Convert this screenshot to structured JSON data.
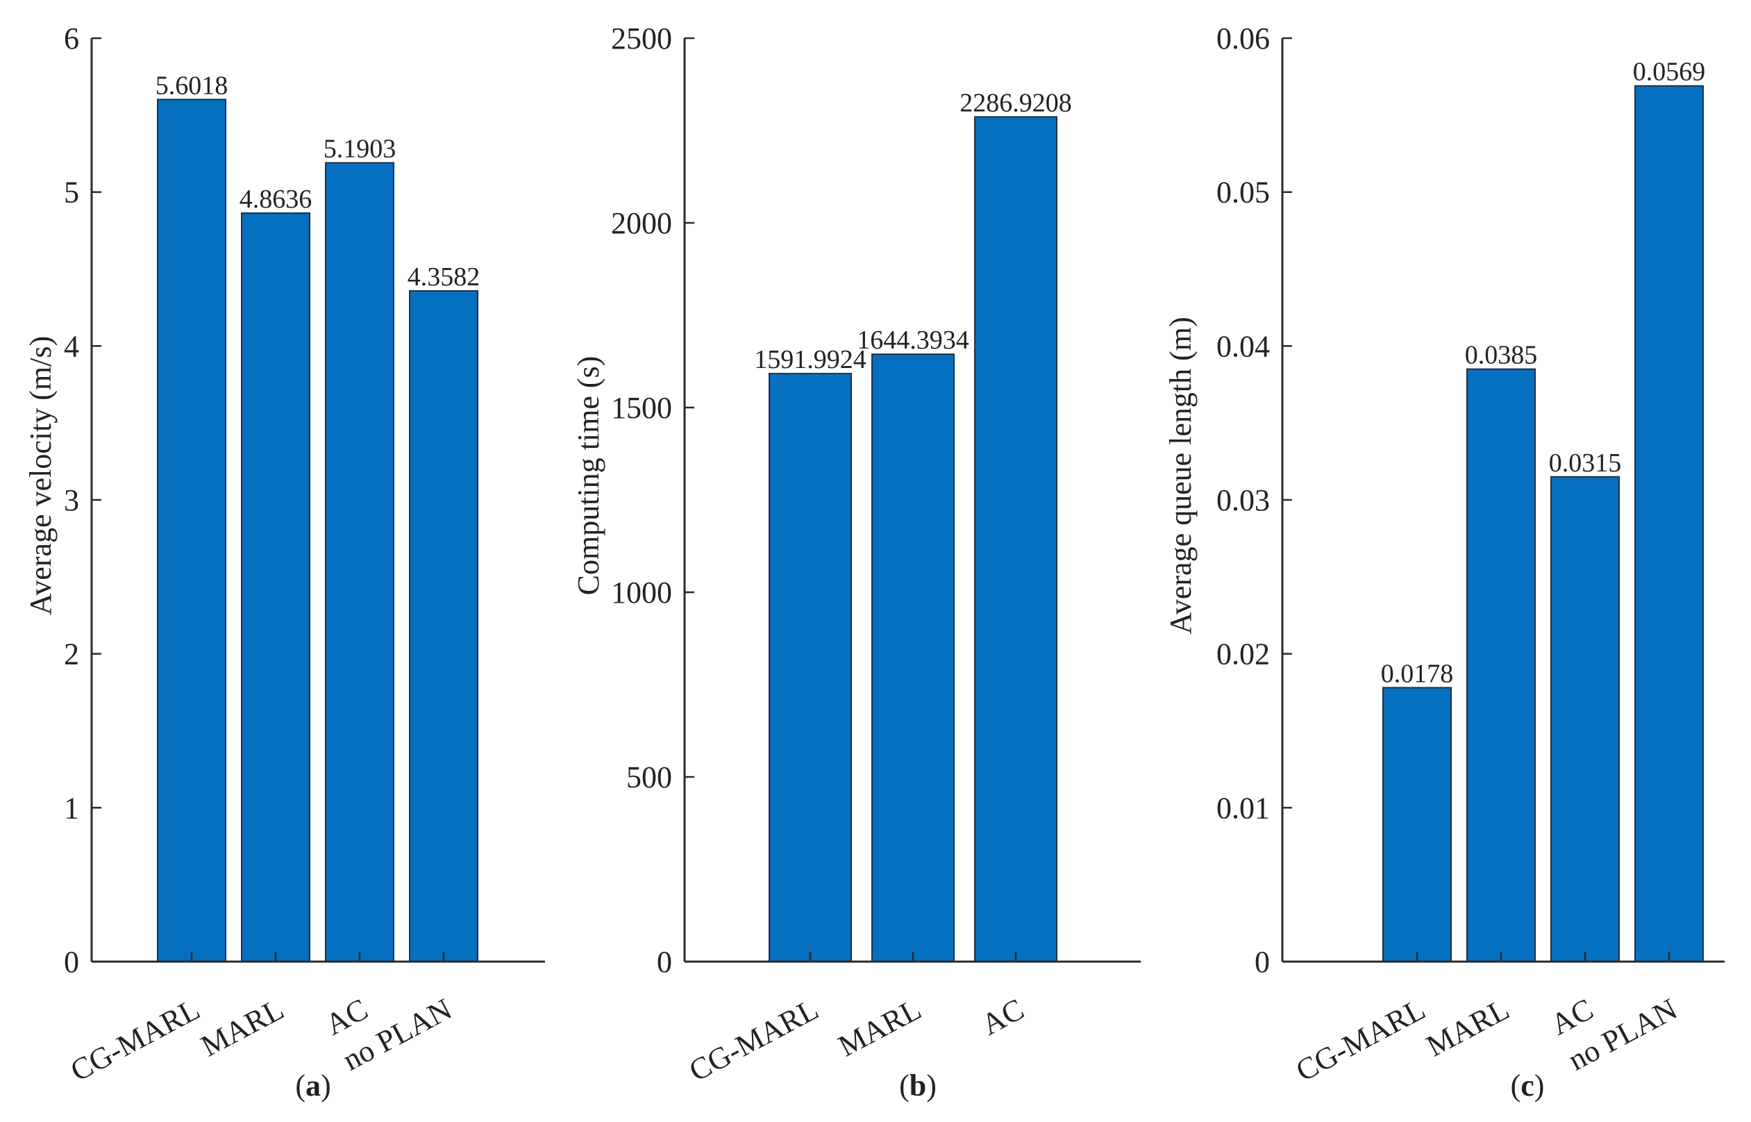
{
  "colors": {
    "bar": "#0670c0",
    "axis": "#2a2a2a",
    "text": "#222222"
  },
  "chart_data": [
    {
      "type": "bar",
      "panel": "a",
      "title": "",
      "xlabel": "",
      "ylabel": "Average velocity (m/s)",
      "categories": [
        "CG-MARL",
        "MARL",
        "AC",
        "no PLAN"
      ],
      "values": [
        5.6018,
        4.8636,
        5.1903,
        4.3582
      ],
      "value_labels": [
        "5.6018",
        "4.8636",
        "5.1903",
        "4.3582"
      ],
      "ylim": [
        0,
        6
      ],
      "yticks": [
        0,
        1,
        2,
        3,
        4,
        5,
        6
      ],
      "ytick_labels": [
        "0",
        "1",
        "2",
        "3",
        "4",
        "5",
        "6"
      ],
      "grid": false
    },
    {
      "type": "bar",
      "panel": "b",
      "title": "",
      "xlabel": "",
      "ylabel": "Computing time (s)",
      "categories": [
        "CG-MARL",
        "MARL",
        "AC"
      ],
      "values": [
        1591.9924,
        1644.3934,
        2286.9208
      ],
      "value_labels": [
        "1591.9924",
        "1644.3934",
        "2286.9208"
      ],
      "ylim": [
        0,
        2500
      ],
      "yticks": [
        0,
        500,
        1000,
        1500,
        2000,
        2500
      ],
      "ytick_labels": [
        "0",
        "500",
        "1000",
        "1500",
        "2000",
        "2500"
      ],
      "grid": false
    },
    {
      "type": "bar",
      "panel": "c",
      "title": "",
      "xlabel": "",
      "ylabel": "Average queue length (m)",
      "categories": [
        "CG-MARL",
        "MARL",
        "AC",
        "no PLAN"
      ],
      "values": [
        0.0178,
        0.0385,
        0.0315,
        0.0569
      ],
      "value_labels": [
        "0.0178",
        "0.0385",
        "0.0315",
        "0.0569"
      ],
      "ylim": [
        0,
        0.06
      ],
      "yticks": [
        0,
        0.01,
        0.02,
        0.03,
        0.04,
        0.05,
        0.06
      ],
      "ytick_labels": [
        "0",
        "0.01",
        "0.02",
        "0.03",
        "0.04",
        "0.05",
        "0.06"
      ],
      "grid": false
    }
  ],
  "panel_labels": [
    {
      "open": "(",
      "letter": "a",
      "close": ")"
    },
    {
      "open": "(",
      "letter": "b",
      "close": ")"
    },
    {
      "open": "(",
      "letter": "c",
      "close": ")"
    }
  ]
}
